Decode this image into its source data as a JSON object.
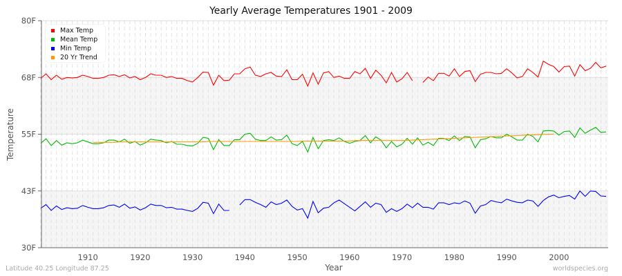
{
  "chart_data": {
    "type": "line",
    "title": "Yearly Average Temperatures 1901 - 2009",
    "xlabel": "Year",
    "ylabel": "Temperature",
    "xlim": [
      1901,
      2009
    ],
    "ylim": [
      30,
      80
    ],
    "yticks": [
      {
        "value": 30,
        "label": "30F"
      },
      {
        "value": 42.5,
        "label": "43F"
      },
      {
        "value": 55,
        "label": "55F"
      },
      {
        "value": 67.5,
        "label": "68F"
      },
      {
        "value": 80,
        "label": "80F"
      }
    ],
    "xticks": [
      1910,
      1920,
      1930,
      1940,
      1950,
      1960,
      1970,
      1980,
      1990,
      2000
    ],
    "grid": true,
    "legend_position": "top-left",
    "x_start": 1901,
    "series": [
      {
        "name": "Max Temp",
        "color": "#ff0000",
        "values": [
          67.3,
          68.3,
          67.0,
          68.0,
          67.1,
          67.5,
          67.4,
          67.5,
          68.0,
          67.7,
          67.3,
          67.3,
          67.5,
          68.0,
          68.1,
          67.7,
          68.1,
          67.4,
          67.7,
          67.0,
          67.5,
          68.3,
          68.0,
          68.0,
          67.5,
          67.7,
          67.3,
          67.3,
          66.8,
          66.5,
          67.5,
          68.7,
          68.6,
          65.8,
          68.0,
          66.8,
          66.9,
          68.3,
          68.3,
          69.4,
          69.8,
          68.0,
          67.7,
          68.3,
          68.6,
          67.8,
          67.7,
          69.2,
          67.0,
          67.0,
          68.2,
          65.6,
          68.5,
          66.0,
          68.5,
          68.8,
          67.5,
          67.8,
          67.3,
          67.3,
          68.8,
          68.3,
          69.5,
          67.3,
          69.1,
          68.0,
          66.3,
          68.6,
          66.5,
          67.2,
          68.6,
          66.8,
          null,
          66.4,
          67.6,
          66.8,
          68.4,
          68.4,
          67.8,
          69.4,
          67.7,
          68.8,
          69.0,
          66.6,
          68.2,
          68.6,
          68.6,
          68.3,
          68.4,
          69.4,
          68.5,
          67.4,
          67.7,
          69.4,
          68.6,
          67.6,
          71.1,
          70.4,
          69.9,
          68.7,
          69.9,
          70.0,
          67.8,
          70.3,
          69.0,
          69.5,
          70.8,
          69.6,
          70.0
        ]
      },
      {
        "name": "Mean Temp",
        "color": "#00bb00",
        "values": [
          53.0,
          54.0,
          52.5,
          53.6,
          52.6,
          53.1,
          52.9,
          53.1,
          53.7,
          53.3,
          52.9,
          52.9,
          53.1,
          53.7,
          53.7,
          53.3,
          53.9,
          53.0,
          53.4,
          52.6,
          53.1,
          53.9,
          53.7,
          53.6,
          53.1,
          53.4,
          52.8,
          52.8,
          52.5,
          52.4,
          53.0,
          54.3,
          54.1,
          51.6,
          53.8,
          52.5,
          52.5,
          53.8,
          53.8,
          55.0,
          55.2,
          53.9,
          53.6,
          53.6,
          54.4,
          53.7,
          53.8,
          54.8,
          52.9,
          52.5,
          53.4,
          51.1,
          54.3,
          51.8,
          53.6,
          53.8,
          53.6,
          54.2,
          53.4,
          53.0,
          53.4,
          53.6,
          54.7,
          53.1,
          54.4,
          53.7,
          52.0,
          53.4,
          52.2,
          52.8,
          54.1,
          52.8,
          54.2,
          52.6,
          53.2,
          52.5,
          54.1,
          54.1,
          53.6,
          54.6,
          53.6,
          54.5,
          54.4,
          52.0,
          53.8,
          54.0,
          54.5,
          54.2,
          54.2,
          55.0,
          54.4,
          53.7,
          53.7,
          55.0,
          54.5,
          53.3,
          55.7,
          55.8,
          55.7,
          54.8,
          55.6,
          55.7,
          54.3,
          56.4,
          55.2,
          55.9,
          56.5,
          55.4,
          55.5
        ]
      },
      {
        "name": "Min Temp",
        "color": "#0000ff",
        "values": [
          38.7,
          39.5,
          38.2,
          39.2,
          38.4,
          38.8,
          38.6,
          38.7,
          39.3,
          38.9,
          38.6,
          38.6,
          38.8,
          39.3,
          39.4,
          38.9,
          39.6,
          38.7,
          39.0,
          38.3,
          38.8,
          39.6,
          39.3,
          39.3,
          38.8,
          38.9,
          38.5,
          38.5,
          38.2,
          38.0,
          38.7,
          40.0,
          39.8,
          37.5,
          39.6,
          38.2,
          38.2,
          null,
          39.4,
          40.6,
          40.6,
          40.0,
          39.5,
          38.9,
          40.1,
          39.5,
          39.8,
          40.5,
          39.1,
          38.3,
          38.6,
          36.5,
          40.2,
          37.7,
          38.7,
          38.9,
          39.9,
          40.5,
          39.7,
          38.9,
          38.1,
          39.1,
          40.1,
          38.9,
          39.8,
          39.5,
          37.8,
          38.6,
          38.0,
          38.6,
          39.6,
          38.8,
          39.8,
          38.9,
          38.9,
          38.5,
          39.9,
          39.9,
          39.5,
          39.9,
          39.7,
          40.3,
          39.8,
          37.6,
          39.2,
          39.5,
          40.4,
          40.1,
          39.9,
          40.7,
          40.3,
          40.0,
          39.9,
          40.5,
          40.3,
          39.1,
          40.4,
          41.2,
          41.6,
          41.0,
          41.3,
          41.5,
          40.7,
          42.5,
          41.3,
          42.5,
          42.4,
          41.4,
          41.3
        ]
      },
      {
        "name": "20 Yr Trend",
        "color": "#ff9900",
        "x_start": 1911,
        "values": [
          53.2,
          53.2,
          53.2,
          53.2,
          53.2,
          53.3,
          53.3,
          53.3,
          53.3,
          53.3,
          53.3,
          53.3,
          53.3,
          53.3,
          53.3,
          53.3,
          53.3,
          53.3,
          53.3,
          53.3,
          53.3,
          53.3,
          53.4,
          53.4,
          53.4,
          53.4,
          53.4,
          53.4,
          53.4,
          53.4,
          53.4,
          53.4,
          53.4,
          53.4,
          53.4,
          53.4,
          53.4,
          53.4,
          53.4,
          53.4,
          53.5,
          53.5,
          53.5,
          53.5,
          53.5,
          53.5,
          53.5,
          53.5,
          53.5,
          53.5,
          53.6,
          53.6,
          53.6,
          53.6,
          53.6,
          53.6,
          53.6,
          53.6,
          53.6,
          53.6,
          53.65,
          53.7,
          53.75,
          53.8,
          53.85,
          53.9,
          53.95,
          54.0,
          54.05,
          54.1,
          54.15,
          54.2,
          54.25,
          54.3,
          54.35,
          54.4,
          54.45,
          54.5,
          54.55,
          54.6,
          54.65,
          54.7,
          54.75,
          54.8,
          54.85,
          54.9,
          54.95,
          55.0,
          55.0
        ]
      }
    ]
  },
  "footer": {
    "location": "Latitude 40.25 Longitude 87.25",
    "source": "worldspecies.org"
  }
}
